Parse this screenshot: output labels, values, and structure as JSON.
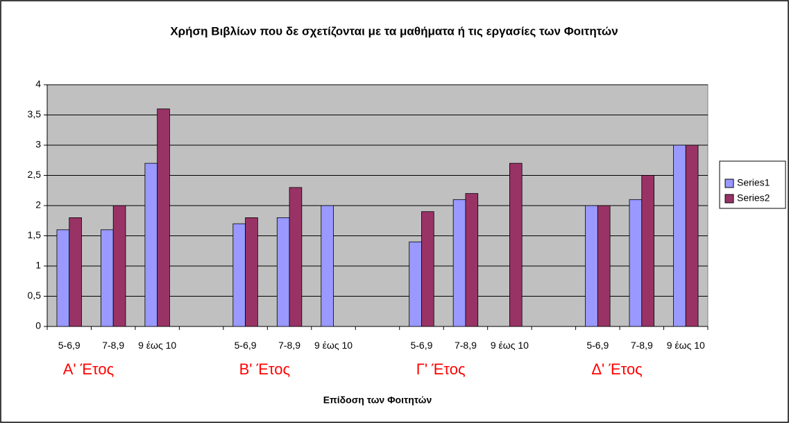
{
  "chart_data": {
    "type": "bar",
    "title": "Χρήση Βιβλίων που δε σχετίζονται με τα μαθήματα ή τις εργασίες των Φοιτητών",
    "x_label": "Επίδοση των Φοιτητών",
    "categories": [
      "5-6,9",
      "7-8,9",
      "9 έως 10",
      null,
      "5-6,9",
      "7-8,9",
      "9 έως 10",
      null,
      "5-6,9",
      "7-8,9",
      "9 έως 10",
      null,
      "5-6,9",
      "7-8,9",
      "9 έως 10"
    ],
    "group_labels": [
      "Α' Έτος",
      "Β' Έτος",
      "Γ' Έτος",
      "Δ' Έτος"
    ],
    "series": [
      {
        "name": "Series1",
        "color": "#9999ff",
        "values": [
          1.6,
          1.6,
          2.7,
          null,
          1.7,
          1.8,
          2.0,
          null,
          1.4,
          2.1,
          null,
          null,
          2.0,
          2.1,
          3.0
        ]
      },
      {
        "name": "Series2",
        "color": "#993366",
        "values": [
          1.8,
          2.0,
          3.6,
          null,
          1.8,
          2.3,
          null,
          null,
          1.9,
          2.2,
          2.7,
          null,
          2.0,
          2.5,
          3.0
        ]
      }
    ],
    "ylim": [
      0,
      4
    ],
    "yticks": [
      0,
      {
        "value": 0.5,
        "label": "0,5"
      },
      1,
      {
        "value": 1.5,
        "label": "1,5"
      },
      2,
      {
        "value": 2.5,
        "label": "2,5"
      },
      3,
      {
        "value": 3.5,
        "label": "3,5"
      },
      4
    ],
    "grid": true,
    "legend": "right",
    "plot_background": "#c0c0c0"
  }
}
